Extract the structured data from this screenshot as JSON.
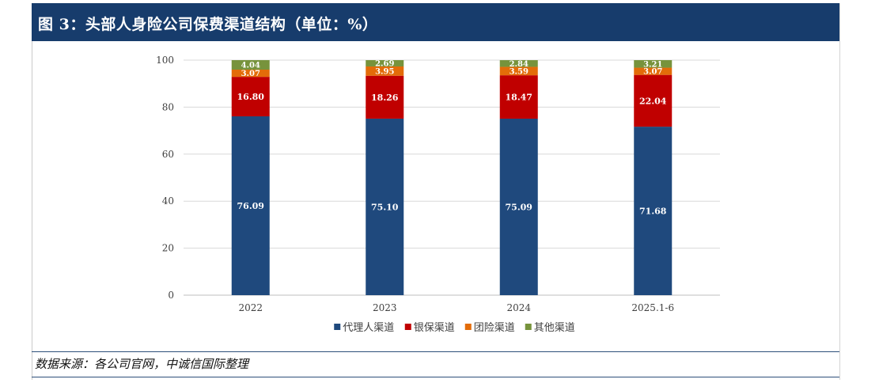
{
  "title": "图 3：头部人身险公司保费渠道结构（单位：%）",
  "source": "数据来源：各公司官网，中诚信国际整理",
  "chart_data": {
    "type": "bar",
    "stacked": true,
    "categories": [
      "2022",
      "2023",
      "2024",
      "2025.1-6"
    ],
    "series": [
      {
        "name": "代理人渠道",
        "color": "#1f497d",
        "values": [
          76.09,
          75.1,
          75.09,
          71.68
        ]
      },
      {
        "name": "银保渠道",
        "color": "#c00000",
        "values": [
          16.8,
          18.26,
          18.47,
          22.04
        ]
      },
      {
        "name": "团险渠道",
        "color": "#e36c09",
        "values": [
          3.07,
          3.95,
          3.59,
          3.07
        ]
      },
      {
        "name": "其他渠道",
        "color": "#77933c",
        "values": [
          4.04,
          2.69,
          2.84,
          3.21
        ]
      }
    ],
    "ylim": [
      0,
      100
    ],
    "yticks": [
      "0",
      "20",
      "40",
      "60",
      "80",
      "100"
    ],
    "grid": true,
    "legend": "bottom",
    "data_labels": true
  }
}
